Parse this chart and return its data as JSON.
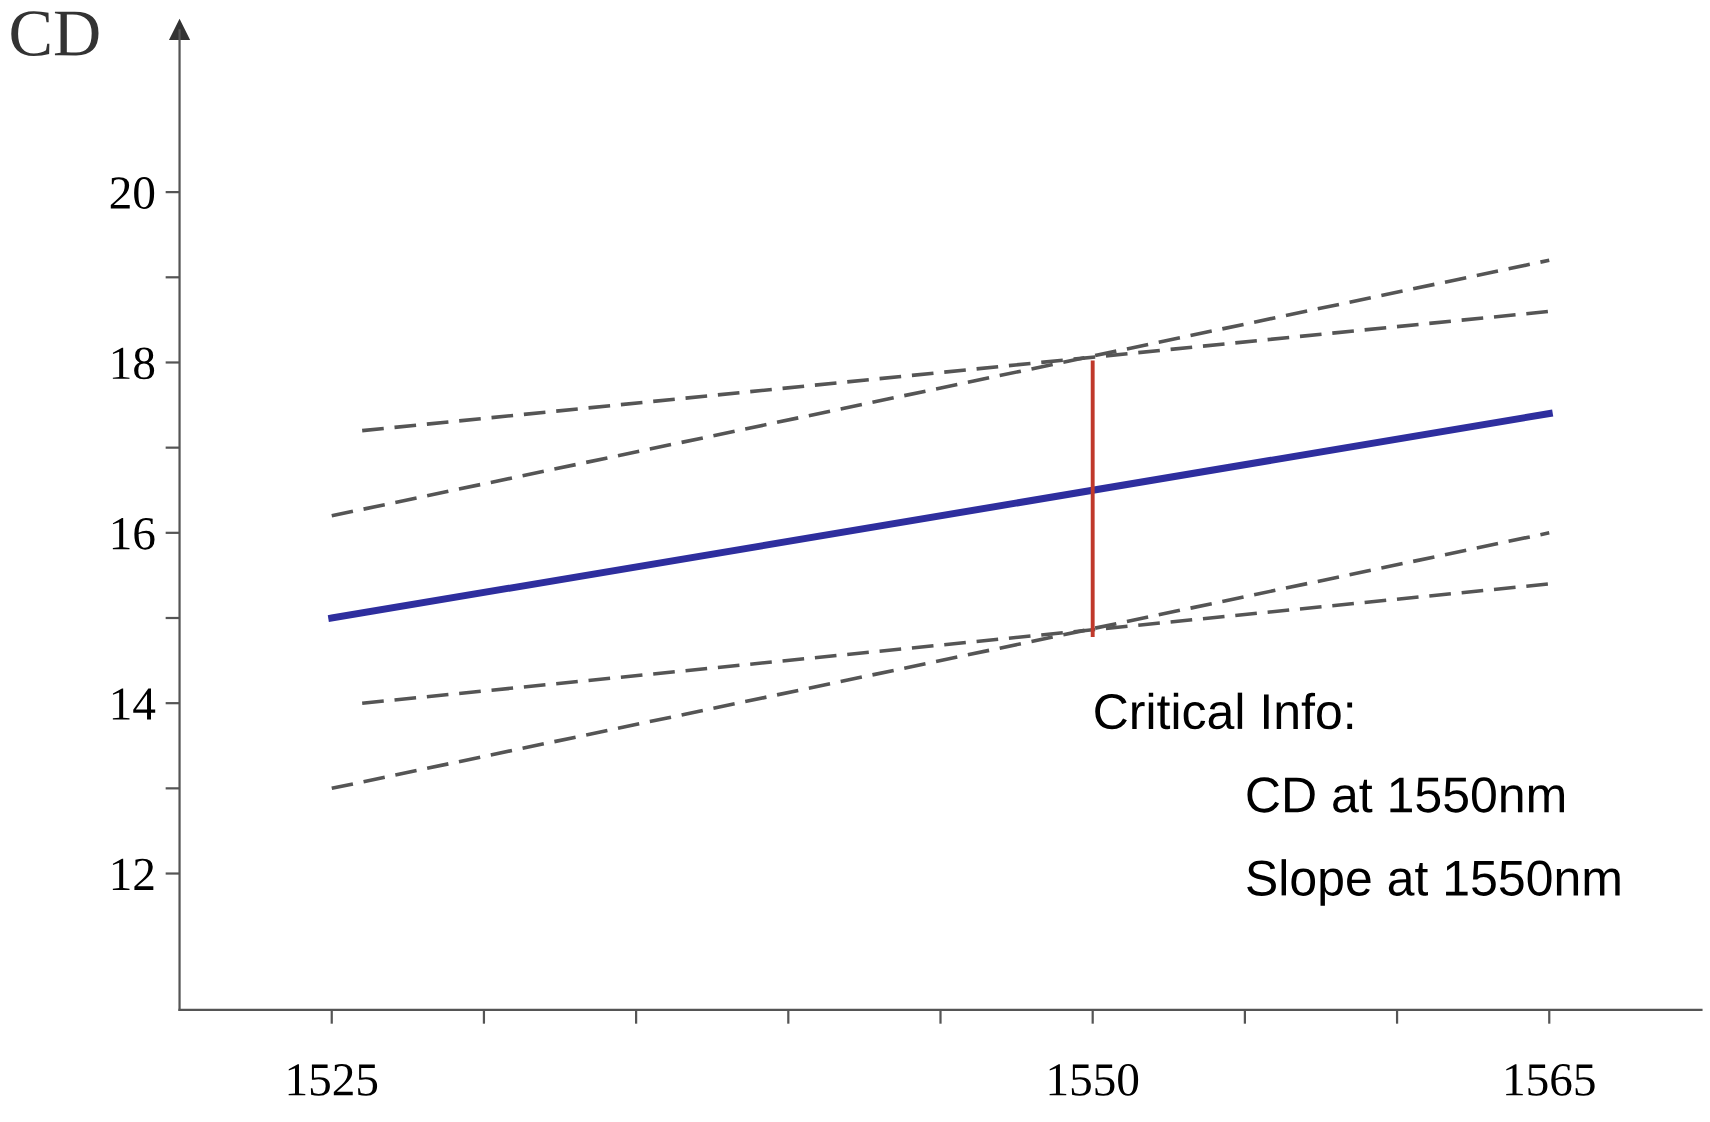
{
  "chart_data": {
    "type": "line",
    "ylabel": "CD",
    "series": [
      {
        "color": "#2e2e9e",
        "x": [
          1525,
          1565
        ],
        "values": [
          15.0,
          17.4
        ],
        "line_style": "solid"
      },
      {
        "color": "#555555",
        "x": [
          1526,
          1565
        ],
        "values": [
          17.2,
          18.6
        ],
        "line_style": "dashed"
      },
      {
        "color": "#555555",
        "x": [
          1525,
          1565
        ],
        "values": [
          16.2,
          19.2
        ],
        "line_style": "dashed"
      },
      {
        "color": "#555555",
        "x": [
          1526,
          1565
        ],
        "values": [
          14.0,
          15.4
        ],
        "line_style": "dashed"
      },
      {
        "color": "#555555",
        "x": [
          1525,
          1565
        ],
        "values": [
          13.0,
          16.0
        ],
        "line_style": "dashed"
      },
      {
        "color": "#c0392b",
        "x": [
          1550,
          1550
        ],
        "values": [
          14.8,
          18.0
        ],
        "line_style": "solid"
      }
    ],
    "annotations": [
      "Critical Info:",
      "CD at 1550nm",
      "Slope at 1550nm"
    ],
    "xlim": [
      1520,
      1570
    ],
    "ylim": [
      10.4,
      21.9
    ],
    "xticks": [
      1525,
      {
        "value": 1530,
        "label": null
      },
      {
        "value": 1535,
        "label": null
      },
      {
        "value": 1540,
        "label": null
      },
      {
        "value": 1545,
        "label": null
      },
      1550,
      {
        "value": 1555,
        "label": null
      },
      {
        "value": 1560,
        "label": null
      },
      1565
    ],
    "yticks": [
      12,
      {
        "value": 13,
        "label": null
      },
      14,
      {
        "value": 15,
        "label": null
      },
      16,
      {
        "value": 17,
        "label": null
      },
      18,
      {
        "value": 19,
        "label": null
      },
      20
    ],
    "grid": false,
    "legend": false,
    "marker": "none"
  }
}
